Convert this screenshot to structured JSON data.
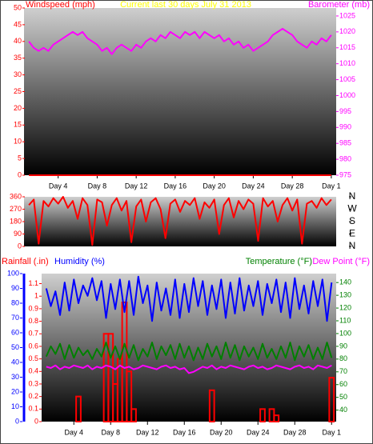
{
  "chart_data": [
    {
      "type": "line",
      "title": "Current last 30 days July 31 2013",
      "x": [
        1,
        1.5,
        2,
        2.5,
        3,
        3.5,
        4,
        4.5,
        5,
        5.5,
        6,
        6.5,
        7,
        7.5,
        8,
        8.5,
        9,
        9.5,
        10,
        10.5,
        11,
        11.5,
        12,
        12.5,
        13,
        13.5,
        14,
        14.5,
        15,
        15.5,
        16,
        16.5,
        17,
        17.5,
        18,
        18.5,
        19,
        19.5,
        20,
        20.5,
        21,
        21.5,
        22,
        22.5,
        23,
        23.5,
        24,
        24.5,
        25,
        25.5,
        26,
        26.5,
        27,
        27.5,
        28,
        28.5,
        29,
        29.5,
        30,
        30.5,
        31,
        31.5,
        32
      ],
      "xlim": [
        0.5,
        32.5
      ],
      "xticks": [
        {
          "value": 4,
          "label": "Day 4"
        },
        {
          "value": 8,
          "label": "Day 8"
        },
        {
          "value": 12,
          "label": "Day 12"
        },
        {
          "value": 16,
          "label": "Day 16"
        },
        {
          "value": 20,
          "label": "Day 20"
        },
        {
          "value": 24,
          "label": "Day 24"
        },
        {
          "value": 28,
          "label": "Day 28"
        },
        {
          "value": 32,
          "label": "Day 1"
        }
      ],
      "ylim": [
        0,
        50
      ],
      "yticks": [
        0,
        5,
        10,
        15,
        20,
        25,
        30,
        35,
        40,
        45,
        50
      ],
      "y2lim": [
        975,
        1027.5
      ],
      "y2ticks": [
        975,
        980,
        985,
        990,
        995,
        1000,
        1005,
        1010,
        1015,
        1020,
        1025
      ],
      "series": [
        {
          "name": "Windspeed (mph)",
          "color": "#ff0000",
          "axis": "y",
          "values": [
            0,
            0,
            0,
            0,
            0,
            0,
            0,
            0,
            0,
            0,
            0,
            0,
            0,
            0,
            0,
            0,
            0,
            0,
            0,
            0,
            0,
            0,
            0,
            0,
            0,
            0,
            0,
            0,
            0,
            0,
            0,
            0,
            0,
            0,
            0,
            0,
            0,
            0,
            0,
            0,
            0,
            0,
            0,
            0,
            0,
            0,
            0,
            0,
            0,
            0,
            0,
            0,
            0,
            0,
            0,
            0,
            0,
            0,
            0,
            0,
            0,
            0,
            0
          ]
        },
        {
          "name": "Barometer (mb)",
          "color": "#ff00ff",
          "axis": "y2",
          "values": [
            1017,
            1015,
            1014,
            1015,
            1014,
            1016,
            1017,
            1018,
            1019,
            1020,
            1019,
            1020,
            1018,
            1017,
            1016,
            1014,
            1015,
            1013,
            1015,
            1016,
            1015,
            1014,
            1016,
            1015,
            1017,
            1018,
            1017,
            1019,
            1018,
            1020,
            1019,
            1018,
            1020,
            1019,
            1020,
            1018,
            1020,
            1019,
            1018,
            1019,
            1017,
            1018,
            1016,
            1017,
            1015,
            1016,
            1014,
            1015,
            1016,
            1017,
            1019,
            1020,
            1021,
            1020,
            1019,
            1017,
            1016,
            1015,
            1017,
            1016,
            1018,
            1017,
            1019
          ]
        }
      ]
    },
    {
      "type": "line",
      "x": [
        1,
        1.5,
        2,
        2.5,
        3,
        3.5,
        4,
        4.5,
        5,
        5.5,
        6,
        6.5,
        7,
        7.5,
        8,
        8.5,
        9,
        9.5,
        10,
        10.5,
        11,
        11.5,
        12,
        12.5,
        13,
        13.5,
        14,
        14.5,
        15,
        15.5,
        16,
        16.5,
        17,
        17.5,
        18,
        18.5,
        19,
        19.5,
        20,
        20.5,
        21,
        21.5,
        22,
        22.5,
        23,
        23.5,
        24,
        24.5,
        25,
        25.5,
        26,
        26.5,
        27,
        27.5,
        28,
        28.5,
        29,
        29.5,
        30,
        30.5,
        31,
        31.5,
        32
      ],
      "xlim": [
        0.5,
        32.5
      ],
      "ylim": [
        0,
        360
      ],
      "yticks": [
        0,
        90,
        180,
        270,
        360
      ],
      "y2lim": [
        0,
        360
      ],
      "y2ticks": [
        {
          "value": 360,
          "label": "N"
        },
        {
          "value": 270,
          "label": "W"
        },
        {
          "value": 180,
          "label": "S"
        },
        {
          "value": 90,
          "label": "E"
        },
        {
          "value": 0,
          "label": "N"
        }
      ],
      "series": [
        {
          "color": "#ff0000",
          "axis": "y",
          "values": [
            300,
            340,
            20,
            330,
            290,
            350,
            310,
            360,
            280,
            330,
            200,
            350,
            300,
            10,
            340,
            320,
            150,
            300,
            350,
            260,
            330,
            30,
            290,
            340,
            180,
            320,
            350,
            270,
            60,
            310,
            340,
            250,
            330,
            300,
            350,
            200,
            320,
            280,
            340,
            90,
            300,
            350,
            210,
            330,
            270,
            340,
            310,
            40,
            350,
            290,
            330,
            180,
            300,
            350,
            260,
            340,
            20,
            310,
            330,
            280,
            350,
            300,
            340
          ]
        }
      ]
    },
    {
      "type": "line",
      "x": [
        1,
        1.5,
        2,
        2.5,
        3,
        3.5,
        4,
        4.5,
        5,
        5.5,
        6,
        6.5,
        7,
        7.5,
        8,
        8.5,
        9,
        9.5,
        10,
        10.5,
        11,
        11.5,
        12,
        12.5,
        13,
        13.5,
        14,
        14.5,
        15,
        15.5,
        16,
        16.5,
        17,
        17.5,
        18,
        18.5,
        19,
        19.5,
        20,
        20.5,
        21,
        21.5,
        22,
        22.5,
        23,
        23.5,
        24,
        24.5,
        25,
        25.5,
        26,
        26.5,
        27,
        27.5,
        28,
        28.5,
        29,
        29.5,
        30,
        30.5,
        31,
        31.5,
        32
      ],
      "xlim": [
        0.5,
        32.5
      ],
      "xticks": [
        {
          "value": 4,
          "label": "Day 4"
        },
        {
          "value": 8,
          "label": "Day 8"
        },
        {
          "value": 12,
          "label": "Day 12"
        },
        {
          "value": 16,
          "label": "Day 16"
        },
        {
          "value": 20,
          "label": "Day 20"
        },
        {
          "value": 24,
          "label": "Day 24"
        },
        {
          "value": 28,
          "label": "Day 28"
        },
        {
          "value": 32,
          "label": "Day 1"
        }
      ],
      "ylim": [
        0,
        100
      ],
      "yticks": [
        0,
        10,
        20,
        30,
        40,
        50,
        60,
        70,
        80,
        90,
        100
      ],
      "y3lim": [
        0,
        1.18
      ],
      "y3ticks": [
        0,
        0.1,
        0.2,
        0.3,
        0.4,
        0.5,
        0.6,
        0.7,
        0.8,
        0.9,
        1,
        1.1
      ],
      "y2lim": [
        31,
        147
      ],
      "y2ticks": [
        40,
        50,
        60,
        70,
        80,
        90,
        100,
        110,
        120,
        130,
        140
      ],
      "series": [
        {
          "name": "Rainfall (.in)",
          "color": "#ff0000",
          "axis": "y3",
          "type": "bar",
          "values": [
            0,
            0,
            0,
            0,
            0,
            0,
            0,
            0.2,
            0,
            0,
            0,
            0,
            0,
            0.7,
            0.7,
            0.3,
            0.5,
            0.95,
            0.4,
            0.1,
            0,
            0,
            0,
            0,
            0,
            0,
            0,
            0,
            0,
            0,
            0,
            0,
            0,
            0,
            0,
            0,
            0.25,
            0,
            0,
            0,
            0,
            0,
            0,
            0,
            0,
            0,
            0,
            0.1,
            0,
            0.1,
            0.05,
            0,
            0,
            0,
            0,
            0,
            0,
            0,
            0,
            0,
            0,
            0,
            0.35
          ]
        },
        {
          "name": "Humidity (%)",
          "color": "#0000ff",
          "axis": "y",
          "values": [
            90,
            78,
            88,
            72,
            94,
            75,
            96,
            80,
            92,
            85,
            97,
            82,
            95,
            70,
            93,
            76,
            96,
            74,
            95,
            72,
            98,
            80,
            92,
            68,
            94,
            75,
            90,
            72,
            96,
            70,
            93,
            74,
            97,
            78,
            95,
            72,
            92,
            76,
            96,
            70,
            94,
            73,
            97,
            75,
            92,
            78,
            95,
            72,
            93,
            80,
            96,
            74,
            94,
            70,
            97,
            76,
            92,
            73,
            95,
            78,
            96,
            68,
            94
          ]
        },
        {
          "name": "Temperature (°F)",
          "color": "#008000",
          "axis": "y2",
          "values": [
            82,
            90,
            84,
            92,
            80,
            91,
            81,
            89,
            83,
            87,
            80,
            88,
            82,
            93,
            81,
            90,
            80,
            92,
            81,
            91,
            79,
            88,
            82,
            93,
            80,
            90,
            83,
            91,
            80,
            92,
            81,
            90,
            79,
            89,
            80,
            92,
            82,
            90,
            80,
            93,
            81,
            91,
            79,
            90,
            82,
            89,
            80,
            92,
            81,
            88,
            80,
            90,
            81,
            93,
            79,
            90,
            82,
            91,
            80,
            89,
            80,
            93,
            81
          ]
        },
        {
          "name": "Dew Point (°F)",
          "color": "#ff00ff",
          "axis": "y2",
          "values": [
            74,
            73,
            75,
            72,
            74,
            73,
            75,
            74,
            73,
            75,
            72,
            74,
            73,
            75,
            74,
            72,
            75,
            73,
            74,
            72,
            73,
            75,
            74,
            73,
            72,
            74,
            75,
            73,
            74,
            72,
            73,
            69,
            70,
            72,
            74,
            73,
            75,
            72,
            74,
            73,
            75,
            74,
            73,
            72,
            74,
            75,
            73,
            74,
            72,
            73,
            75,
            74,
            73,
            72,
            74,
            75,
            73,
            74,
            72,
            75,
            74,
            73,
            75
          ]
        }
      ]
    }
  ]
}
